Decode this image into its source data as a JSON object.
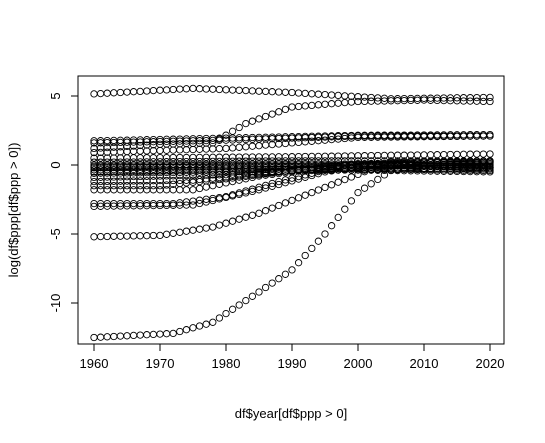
{
  "chart_data": {
    "type": "scatter",
    "title": "",
    "xlabel": "df$year[df$ppp > 0]",
    "ylabel": "log(df$ppp[df$ppp > 0])",
    "xlim": [
      1960,
      2020
    ],
    "ylim": [
      -12.5,
      5.5
    ],
    "x_ticks": [
      "1960",
      "1970",
      "1980",
      "1990",
      "2000",
      "2010",
      "2020"
    ],
    "y_ticks": [
      "-10",
      "-5",
      "0",
      "5"
    ],
    "grid": false,
    "legend": "none",
    "marker": "open-circle",
    "series_anchors": [
      [
        [
          1960,
          5.15
        ],
        [
          1975,
          5.55
        ],
        [
          1990,
          5.25
        ],
        [
          2005,
          4.8
        ],
        [
          2020,
          4.9
        ]
      ],
      [
        [
          1960,
          1.75
        ],
        [
          1980,
          1.95
        ],
        [
          2000,
          2.15
        ],
        [
          2020,
          2.2
        ]
      ],
      [
        [
          1960,
          1.6
        ],
        [
          1980,
          1.8
        ],
        [
          2000,
          2.1
        ],
        [
          2020,
          2.1
        ]
      ],
      [
        [
          1960,
          1.2
        ],
        [
          1970,
          1.5
        ],
        [
          1978,
          1.6
        ],
        [
          1983,
          3.0
        ],
        [
          1990,
          4.2
        ],
        [
          2000,
          4.6
        ],
        [
          2010,
          4.7
        ],
        [
          2020,
          4.6
        ]
      ],
      [
        [
          1960,
          0.9
        ],
        [
          1980,
          1.2
        ],
        [
          2000,
          2.0
        ],
        [
          2020,
          2.1
        ]
      ],
      [
        [
          1960,
          0.5
        ],
        [
          1990,
          0.6
        ],
        [
          2020,
          0.8
        ]
      ],
      [
        [
          1960,
          0.2
        ],
        [
          1990,
          0.3
        ],
        [
          2020,
          0.3
        ]
      ],
      [
        [
          1960,
          0.0
        ],
        [
          1990,
          0.1
        ],
        [
          2020,
          0.0
        ]
      ],
      [
        [
          1960,
          -0.1
        ],
        [
          1990,
          0.0
        ],
        [
          2020,
          -0.1
        ]
      ],
      [
        [
          1960,
          -0.2
        ],
        [
          1990,
          -0.1
        ],
        [
          2020,
          -0.3
        ]
      ],
      [
        [
          1960,
          -0.35
        ],
        [
          1990,
          -0.2
        ],
        [
          2020,
          -0.4
        ]
      ],
      [
        [
          1960,
          -0.5
        ],
        [
          1990,
          -0.3
        ],
        [
          2020,
          -0.5
        ]
      ],
      [
        [
          1960,
          -0.6
        ],
        [
          1980,
          -0.5
        ],
        [
          2020,
          -0.2
        ]
      ],
      [
        [
          1960,
          -0.9
        ],
        [
          1980,
          -0.7
        ],
        [
          2000,
          -0.1
        ],
        [
          2020,
          0.1
        ]
      ],
      [
        [
          1960,
          -1.2
        ],
        [
          1975,
          -1.1
        ],
        [
          1990,
          -0.4
        ],
        [
          2020,
          0.2
        ]
      ],
      [
        [
          1960,
          -1.5
        ],
        [
          1970,
          -1.5
        ],
        [
          1980,
          -1.0
        ],
        [
          1995,
          -0.1
        ],
        [
          2020,
          0.3
        ]
      ],
      [
        [
          1960,
          -1.8
        ],
        [
          1975,
          -1.8
        ],
        [
          1985,
          -0.8
        ],
        [
          2000,
          0.1
        ],
        [
          2020,
          0.2
        ]
      ],
      [
        [
          1960,
          -2.8
        ],
        [
          1972,
          -2.8
        ],
        [
          1980,
          -2.3
        ],
        [
          1988,
          -1.2
        ],
        [
          1998,
          0.0
        ],
        [
          2020,
          0.0
        ]
      ],
      [
        [
          1960,
          -3.0
        ],
        [
          1975,
          -2.9
        ],
        [
          1985,
          -1.8
        ],
        [
          1995,
          -0.5
        ],
        [
          2005,
          0.2
        ],
        [
          2020,
          0.3
        ]
      ],
      [
        [
          1960,
          -5.2
        ],
        [
          1970,
          -5.1
        ],
        [
          1978,
          -4.5
        ],
        [
          1985,
          -3.5
        ],
        [
          1993,
          -2.0
        ],
        [
          2002,
          -0.3
        ],
        [
          2010,
          -0.1
        ],
        [
          2020,
          -0.2
        ]
      ],
      [
        [
          1960,
          -12.5
        ],
        [
          1972,
          -12.2
        ],
        [
          1978,
          -11.4
        ],
        [
          1985,
          -9.2
        ],
        [
          1990,
          -7.6
        ],
        [
          1995,
          -5.0
        ],
        [
          2000,
          -2.0
        ],
        [
          2005,
          -0.4
        ],
        [
          2010,
          -0.1
        ],
        [
          2020,
          -0.2
        ]
      ]
    ]
  }
}
